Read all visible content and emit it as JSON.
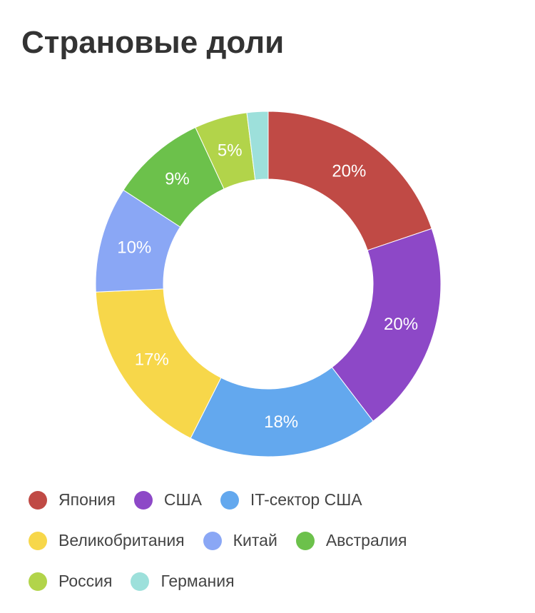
{
  "header": {
    "title": "Страновые доли"
  },
  "chart_data": {
    "type": "pie",
    "title": "Страновые доли",
    "legend_position": "bottom",
    "categories": [
      "Япония",
      "США",
      "IT-сектор США",
      "Великобритания",
      "Китай",
      "Австралия",
      "Россия",
      "Германия"
    ],
    "values": [
      20,
      20,
      18,
      17,
      10,
      9,
      5,
      2
    ],
    "data_labels": [
      "20%",
      "20%",
      "18%",
      "17%",
      "10%",
      "9%",
      "5%",
      ""
    ],
    "colors": [
      "#C04A45",
      "#8D48C7",
      "#63A8EE",
      "#F7D74A",
      "#8AA7F5",
      "#6CC14B",
      "#B2D44A",
      "#9DE0DB"
    ]
  }
}
